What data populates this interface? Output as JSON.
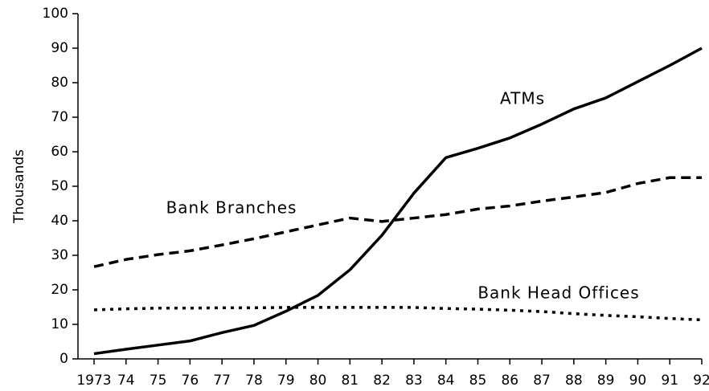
{
  "chart_data": {
    "type": "line",
    "y_label": "Thousands",
    "categories": [
      "1973",
      "74",
      "75",
      "76",
      "77",
      "78",
      "79",
      "80",
      "81",
      "82",
      "83",
      "84",
      "85",
      "86",
      "87",
      "88",
      "89",
      "90",
      "91",
      "92"
    ],
    "series": [
      {
        "name": "ATMs",
        "color": "#000000",
        "style": "solid",
        "values": [
          1.5,
          2.8,
          4,
          5.2,
          7.6,
          9.7,
          13.8,
          18.4,
          25.8,
          35.8,
          48,
          58.3,
          61,
          64,
          68,
          72.4,
          75.6,
          80.3,
          85,
          90
        ]
      },
      {
        "name": "Bank Branches",
        "color": "#000000",
        "style": "dashed",
        "values": [
          26.7,
          28.8,
          30.2,
          31.3,
          33,
          34.8,
          36.8,
          38.8,
          40.8,
          39.8,
          40.8,
          41.8,
          43.4,
          44.3,
          45.7,
          46.9,
          48.2,
          50.8,
          52.5,
          52.5
        ]
      },
      {
        "name": "Bank Head Offices",
        "color": "#000000",
        "style": "dotted",
        "values": [
          14.2,
          14.5,
          14.7,
          14.7,
          14.8,
          14.8,
          14.9,
          14.9,
          14.9,
          14.9,
          14.9,
          14.6,
          14.4,
          14.1,
          13.7,
          13.1,
          12.6,
          12.2,
          11.7,
          11.3
        ]
      }
    ],
    "ylim": [
      0,
      100
    ],
    "yticks": [
      0,
      10,
      20,
      30,
      40,
      50,
      60,
      70,
      80,
      90,
      100
    ],
    "grid": false
  }
}
